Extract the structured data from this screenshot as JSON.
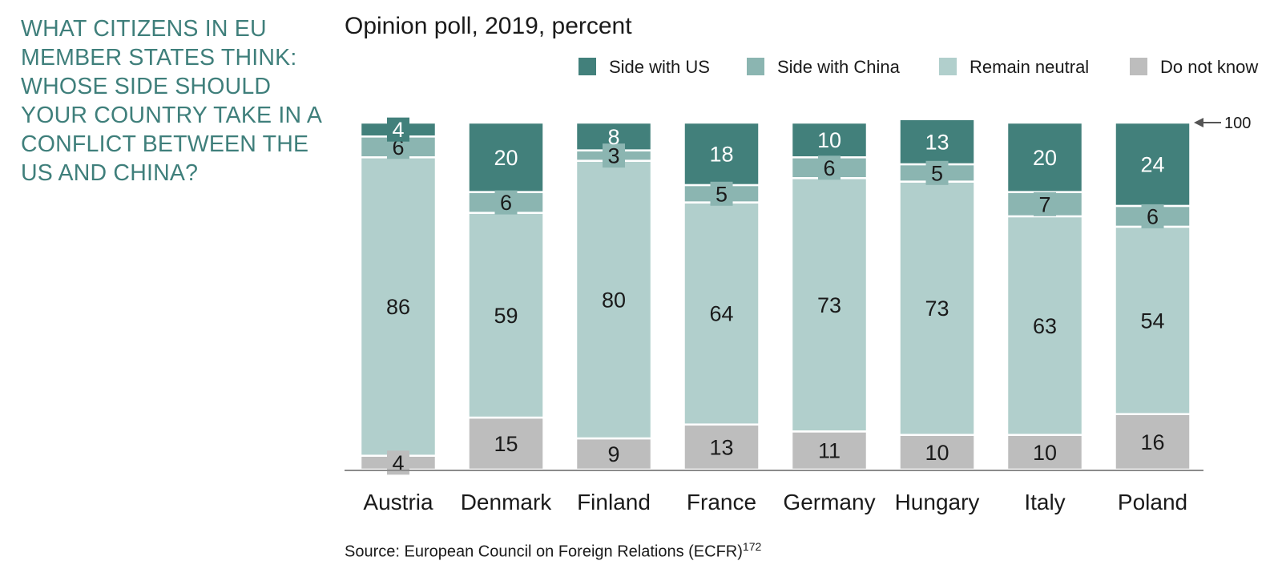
{
  "headline": "WHAT CITIZENS IN EU MEMBER STATES THINK: WHOSE SIDE SHOULD YOUR COUNTRY TAKE IN A CONFLICT BETWEEN THE US AND CHINA?",
  "source_text": "Source: European Council on Foreign Relations (ECFR)",
  "source_footnote": "172",
  "chart_data": {
    "type": "bar",
    "stacked": true,
    "title": "Opinion poll, 2019, percent",
    "categories": [
      "Austria",
      "Denmark",
      "Finland",
      "France",
      "Germany",
      "Hungary",
      "Italy",
      "Poland"
    ],
    "series": [
      {
        "name": "Do not know",
        "color": "#bdbdbd",
        "values": [
          4,
          15,
          9,
          13,
          11,
          10,
          10,
          16
        ]
      },
      {
        "name": "Remain neutral",
        "color": "#b1cfcc",
        "values": [
          86,
          59,
          80,
          64,
          73,
          73,
          63,
          54
        ]
      },
      {
        "name": "Side with China",
        "color": "#8bb5b1",
        "values": [
          6,
          6,
          3,
          5,
          6,
          5,
          7,
          6
        ]
      },
      {
        "name": "Side with US",
        "color": "#42807b",
        "values": [
          4,
          20,
          8,
          18,
          10,
          13,
          20,
          24
        ]
      }
    ],
    "legend_order": [
      "Side with US",
      "Side with China",
      "Remain neutral",
      "Do not know"
    ],
    "legend_position": "top",
    "reference_label": "100",
    "ylim": [
      0,
      100
    ],
    "grid": false
  }
}
